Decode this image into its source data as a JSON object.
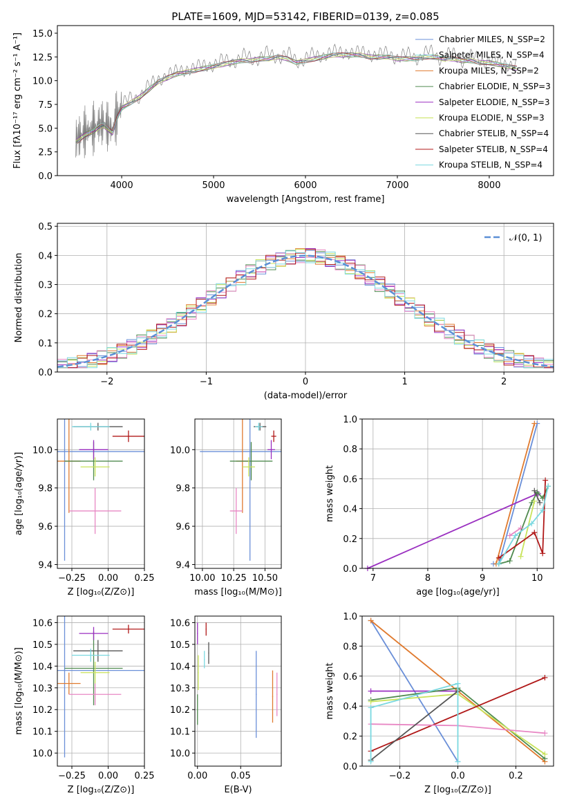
{
  "figure": {
    "title": "PLATE=1609, MJD=53142, FIBERID=0139, z=0.085"
  },
  "chart_data": [
    {
      "id": "spectrum",
      "type": "line",
      "xlabel": "wavelength [Angstrom, rest frame]",
      "ylabel": "Flux [fλ10⁻¹⁷ erg cm⁻² s⁻¹ A⁻¹]",
      "xlim": [
        3300,
        8700
      ],
      "ylim": [
        0,
        15.8
      ],
      "xticks": [
        4000,
        5000,
        6000,
        7000,
        8000
      ],
      "yticks": [
        0.0,
        2.5,
        5.0,
        7.5,
        10.0,
        12.5,
        15.0
      ],
      "legend": "right",
      "observed_spectrum": {
        "x": [
          3500,
          3550,
          3600,
          3650,
          3700,
          3750,
          3800,
          3850,
          3900,
          3950,
          4000,
          4100,
          4200,
          4300,
          4400,
          4500,
          4600,
          4700,
          4800,
          4900,
          5000,
          5100,
          5200,
          5300,
          5400,
          5500,
          5600,
          5700,
          5800,
          5900,
          6000,
          6100,
          6200,
          6300,
          6400,
          6500,
          6600,
          6700,
          6800,
          6900,
          7000,
          7100,
          7200,
          7300,
          7400,
          7500,
          7600,
          7700,
          7800,
          7900,
          8000,
          8100,
          8200,
          8300
        ],
        "y": [
          3.8,
          4.2,
          4.6,
          4.8,
          5.0,
          5.4,
          5.6,
          5.2,
          4.8,
          6.4,
          7.4,
          8.0,
          8.6,
          9.4,
          10.2,
          10.6,
          11.0,
          11.2,
          11.4,
          11.6,
          11.8,
          12.0,
          12.2,
          12.4,
          12.4,
          12.6,
          12.6,
          12.8,
          12.6,
          12.2,
          12.4,
          12.6,
          12.8,
          13.0,
          13.0,
          13.0,
          13.0,
          12.8,
          12.8,
          12.8,
          12.6,
          12.6,
          12.6,
          12.8,
          12.8,
          12.6,
          12.6,
          12.4,
          12.4,
          12.2,
          12.2,
          12.0,
          11.8,
          11.6
        ]
      },
      "series": [
        {
          "name": "Chabrier MILES, N_SSP=2",
          "color": "#6a8fd8"
        },
        {
          "name": "Salpeter MILES, N_SSP=4",
          "color": "#7be0e0"
        },
        {
          "name": "Kroupa MILES, N_SSP=2",
          "color": "#e07a2e"
        },
        {
          "name": "Chabrier ELODIE, N_SSP=3",
          "color": "#4f8a4f"
        },
        {
          "name": "Salpeter ELODIE, N_SSP=3",
          "color": "#9a2fc0"
        },
        {
          "name": "Kroupa ELODIE, N_SSP=3",
          "color": "#c8e35a"
        },
        {
          "name": "Chabrier STELIB, N_SSP=4",
          "color": "#555555"
        },
        {
          "name": "Salpeter STELIB, N_SSP=4",
          "color": "#b01818"
        },
        {
          "name": "Kroupa STELIB, N_SSP=4",
          "color": "#7ad8e0"
        }
      ]
    },
    {
      "id": "residuals",
      "type": "line",
      "xlabel": "(data-model)/error",
      "ylabel": "Normed distribution",
      "xlim": [
        -2.5,
        2.5
      ],
      "ylim": [
        0,
        0.51
      ],
      "xticks": [
        -2,
        -1,
        0,
        1,
        2
      ],
      "yticks": [
        0.0,
        0.1,
        0.2,
        0.3,
        0.4,
        0.5
      ],
      "legend": "top-right",
      "gaussian_label": "𝒩(0, 1)",
      "gaussian_color": "#5b8fd6",
      "grid": true
    },
    {
      "id": "age-vs-Z",
      "type": "scatter",
      "xlabel": "Z [log₁₀(Z/Z⊙)]",
      "ylabel": "age  [log₁₀(age/yr)]",
      "xlim": [
        -0.35,
        0.25
      ],
      "ylim": [
        9.38,
        10.16
      ],
      "xticks": [
        -0.25,
        0.0,
        0.25
      ],
      "xtick_labels": [
        "−0.25",
        "0.00",
        "0.25"
      ],
      "yticks": [
        9.4,
        9.6,
        9.8,
        10.0
      ],
      "points": [
        {
          "color": "#6a8fd8",
          "x": -0.3,
          "y": 9.99,
          "xerr": 0.55,
          "yerr": 0.57
        },
        {
          "color": "#e07a2e",
          "x": -0.27,
          "y": 9.94,
          "xerr": 0.08,
          "yerr": 0.27
        },
        {
          "color": "#4f8a4f",
          "x": -0.1,
          "y": 9.94,
          "xerr": 0.2,
          "yerr": 0.1
        },
        {
          "color": "#9a2fc0",
          "x": -0.1,
          "y": 10.0,
          "xerr": 0.1,
          "yerr": 0.05
        },
        {
          "color": "#c8e35a",
          "x": -0.09,
          "y": 9.91,
          "xerr": 0.1,
          "yerr": 0.05
        },
        {
          "color": "#555555",
          "x": -0.07,
          "y": 10.12,
          "xerr": 0.17,
          "yerr": 0.02
        },
        {
          "color": "#b01818",
          "x": 0.14,
          "y": 10.07,
          "xerr": 0.11,
          "yerr": 0.03
        },
        {
          "color": "#e887c4",
          "x": -0.09,
          "y": 9.68,
          "xerr": 0.18,
          "yerr": 0.12
        },
        {
          "color": "#7ad8e0",
          "x": -0.12,
          "y": 10.12,
          "xerr": 0.13,
          "yerr": 0.02
        }
      ]
    },
    {
      "id": "age-vs-mass",
      "type": "scatter",
      "xlabel": "mass [log₁₀(M/M⊙)]",
      "ylabel": "",
      "xlim": [
        9.94,
        10.63
      ],
      "ylim": [
        9.38,
        10.16
      ],
      "xticks": [
        10.0,
        10.25,
        10.5
      ],
      "xtick_labels": [
        "10.00",
        "10.25",
        "10.50"
      ],
      "yticks": [
        9.4,
        9.6,
        9.8,
        10.0
      ],
      "points": [
        {
          "color": "#6a8fd8",
          "x": 10.38,
          "y": 9.99,
          "xerr": 0.4,
          "yerr": 0.57
        },
        {
          "color": "#e07a2e",
          "x": 10.32,
          "y": 9.94,
          "xerr": 0.05,
          "yerr": 0.27
        },
        {
          "color": "#4f8a4f",
          "x": 10.39,
          "y": 9.94,
          "xerr": 0.17,
          "yerr": 0.1
        },
        {
          "color": "#9a2fc0",
          "x": 10.55,
          "y": 10.0,
          "xerr": 0.03,
          "yerr": 0.05
        },
        {
          "color": "#c8e35a",
          "x": 10.37,
          "y": 9.91,
          "xerr": 0.05,
          "yerr": 0.05
        },
        {
          "color": "#555555",
          "x": 10.46,
          "y": 10.12,
          "xerr": 0.05,
          "yerr": 0.02
        },
        {
          "color": "#b01818",
          "x": 10.57,
          "y": 10.07,
          "xerr": 0.02,
          "yerr": 0.03
        },
        {
          "color": "#e887c4",
          "x": 10.27,
          "y": 9.68,
          "xerr": 0.05,
          "yerr": 0.12
        },
        {
          "color": "#7ad8e0",
          "x": 10.45,
          "y": 10.12,
          "xerr": 0.03,
          "yerr": 0.02
        }
      ]
    },
    {
      "id": "weight-vs-age",
      "type": "line",
      "xlabel": "age  [log₁₀(age/yr)]",
      "ylabel": "mass weight",
      "xlim": [
        6.8,
        10.3
      ],
      "ylim": [
        0,
        1.0
      ],
      "xticks": [
        7,
        8,
        9,
        10
      ],
      "yticks": [
        0.0,
        0.2,
        0.4,
        0.6,
        0.8,
        1.0
      ],
      "series": [
        {
          "color": "#6a8fd8",
          "x": [
            9.2,
            9.3,
            10.0
          ],
          "y": [
            0.03,
            0.03,
            0.97
          ]
        },
        {
          "color": "#e07a2e",
          "x": [
            9.25,
            9.95
          ],
          "y": [
            0.03,
            0.97
          ]
        },
        {
          "color": "#9a2fc0",
          "x": [
            6.9,
            10.0,
            10.02
          ],
          "y": [
            0.0,
            0.5,
            0.5
          ]
        },
        {
          "color": "#4f8a4f",
          "x": [
            9.3,
            9.5,
            9.9,
            10.0,
            10.1,
            10.2
          ],
          "y": [
            0.03,
            0.05,
            0.44,
            0.51,
            0.47,
            0.55
          ]
        },
        {
          "color": "#c8e35a",
          "x": [
            9.7,
            9.95
          ],
          "y": [
            0.08,
            0.45
          ]
        },
        {
          "color": "#b01818",
          "x": [
            9.3,
            9.95,
            10.1,
            10.15
          ],
          "y": [
            0.07,
            0.24,
            0.1,
            0.59
          ]
        },
        {
          "color": "#e887c4",
          "x": [
            9.5,
            9.7
          ],
          "y": [
            0.22,
            0.27
          ]
        },
        {
          "color": "#555555",
          "x": [
            9.95,
            10.05
          ],
          "y": [
            0.52,
            0.44
          ]
        },
        {
          "color": "#7ad8e0",
          "x": [
            9.3,
            9.6,
            9.9,
            10.1,
            10.2
          ],
          "y": [
            0.03,
            0.22,
            0.3,
            0.39,
            0.55
          ]
        }
      ]
    },
    {
      "id": "mass-vs-Z",
      "type": "scatter",
      "xlabel": "Z [log₁₀(Z/Z⊙)]",
      "ylabel": "mass [log₁₀(M/M⊙)]",
      "xlim": [
        -0.35,
        0.25
      ],
      "ylim": [
        9.94,
        10.63
      ],
      "xticks": [
        -0.25,
        0.0,
        0.25
      ],
      "xtick_labels": [
        "−0.25",
        "0.00",
        "0.25"
      ],
      "yticks": [
        10.0,
        10.1,
        10.2,
        10.3,
        10.4,
        10.5,
        10.6
      ],
      "ytick_labels": [
        "10.0",
        "10.1",
        "10.2",
        "10.3",
        "10.4",
        "10.5",
        "10.6"
      ],
      "points": [
        {
          "color": "#6a8fd8",
          "x": -0.3,
          "y": 10.38,
          "xerr": 0.55,
          "yerr": 0.4
        },
        {
          "color": "#e07a2e",
          "x": -0.27,
          "y": 10.32,
          "xerr": 0.08,
          "yerr": 0.05
        },
        {
          "color": "#4f8a4f",
          "x": -0.1,
          "y": 10.39,
          "xerr": 0.2,
          "yerr": 0.17
        },
        {
          "color": "#9a2fc0",
          "x": -0.1,
          "y": 10.55,
          "xerr": 0.1,
          "yerr": 0.03
        },
        {
          "color": "#c8e35a",
          "x": -0.09,
          "y": 10.37,
          "xerr": 0.1,
          "yerr": 0.05
        },
        {
          "color": "#555555",
          "x": -0.07,
          "y": 10.47,
          "xerr": 0.17,
          "yerr": 0.05
        },
        {
          "color": "#b01818",
          "x": 0.14,
          "y": 10.57,
          "xerr": 0.11,
          "yerr": 0.02
        },
        {
          "color": "#e887c4",
          "x": -0.09,
          "y": 10.27,
          "xerr": 0.18,
          "yerr": 0.05
        },
        {
          "color": "#7ad8e0",
          "x": -0.12,
          "y": 10.45,
          "xerr": 0.13,
          "yerr": 0.03
        }
      ]
    },
    {
      "id": "mass-vs-ebv",
      "type": "scatter",
      "xlabel": "E(B-V)",
      "ylabel": "",
      "xlim": [
        -0.003,
        0.097
      ],
      "ylim": [
        9.94,
        10.63
      ],
      "xticks": [
        0.0,
        0.05
      ],
      "xtick_labels": [
        "0.00",
        "0.05"
      ],
      "yticks": [
        10.0,
        10.1,
        10.2,
        10.3,
        10.4,
        10.5,
        10.6
      ],
      "ytick_labels": [
        "10.0",
        "10.1",
        "10.2",
        "10.3",
        "10.4",
        "10.5",
        "10.6"
      ],
      "points": [
        {
          "color": "#6a8fd8",
          "x": 0.068,
          "y": 10.27,
          "xerr": 0.0005,
          "yerr": 0.2
        },
        {
          "color": "#e07a2e",
          "x": 0.087,
          "y": 10.26,
          "xerr": 0.0005,
          "yerr": 0.12
        },
        {
          "color": "#4f8a4f",
          "x": 0.0,
          "y": 10.2,
          "xerr": 0.0005,
          "yerr": 0.07
        },
        {
          "color": "#9a2fc0",
          "x": 0.0,
          "y": 10.55,
          "xerr": 0.0005,
          "yerr": 0.05
        },
        {
          "color": "#c8e35a",
          "x": 0.001,
          "y": 10.37,
          "xerr": 0.0005,
          "yerr": 0.08
        },
        {
          "color": "#555555",
          "x": 0.013,
          "y": 10.46,
          "xerr": 0.0005,
          "yerr": 0.05
        },
        {
          "color": "#b01818",
          "x": 0.01,
          "y": 10.57,
          "xerr": 0.0005,
          "yerr": 0.03
        },
        {
          "color": "#e887c4",
          "x": 0.092,
          "y": 10.27,
          "xerr": 0.0005,
          "yerr": 0.1
        },
        {
          "color": "#7ad8e0",
          "x": 0.008,
          "y": 10.43,
          "xerr": 0.0005,
          "yerr": 0.04
        }
      ]
    },
    {
      "id": "weight-vs-Z",
      "type": "line",
      "xlabel": "Z [log₁₀(Z/Z⊙)]",
      "ylabel": "mass weight",
      "xlim": [
        -0.33,
        0.33
      ],
      "ylim": [
        0,
        1.0
      ],
      "xticks": [
        -0.2,
        0.0,
        0.2
      ],
      "xtick_labels": [
        "−0.2",
        "0.0",
        "0.2"
      ],
      "yticks": [
        0.0,
        0.2,
        0.4,
        0.6,
        0.8,
        1.0
      ],
      "series": [
        {
          "color": "#6a8fd8",
          "x": [
            -0.3,
            0.0
          ],
          "y": [
            0.97,
            0.03
          ]
        },
        {
          "color": "#e07a2e",
          "x": [
            -0.3,
            0.3
          ],
          "y": [
            0.97,
            0.03
          ]
        },
        {
          "color": "#9a2fc0",
          "x": [
            -0.3,
            0.0
          ],
          "y": [
            0.5,
            0.5
          ]
        },
        {
          "color": "#4f8a4f",
          "x": [
            -0.3,
            0.0,
            0.3
          ],
          "y": [
            0.44,
            0.52,
            0.05
          ]
        },
        {
          "color": "#c8e35a",
          "x": [
            -0.3,
            0.0,
            0.3
          ],
          "y": [
            0.43,
            0.48,
            0.08
          ]
        },
        {
          "color": "#b01818",
          "x": [
            -0.3,
            0.3
          ],
          "y": [
            0.1,
            0.59
          ]
        },
        {
          "color": "#e887c4",
          "x": [
            -0.3,
            0.0,
            0.3
          ],
          "y": [
            0.28,
            0.27,
            0.22
          ]
        },
        {
          "color": "#555555",
          "x": [
            -0.3,
            0.0
          ],
          "y": [
            0.04,
            0.5
          ]
        },
        {
          "color": "#7ad8e0",
          "x": [
            -0.3,
            -0.3,
            0.0,
            0.0
          ],
          "y": [
            0.03,
            0.39,
            0.55,
            0.03
          ]
        }
      ]
    }
  ]
}
